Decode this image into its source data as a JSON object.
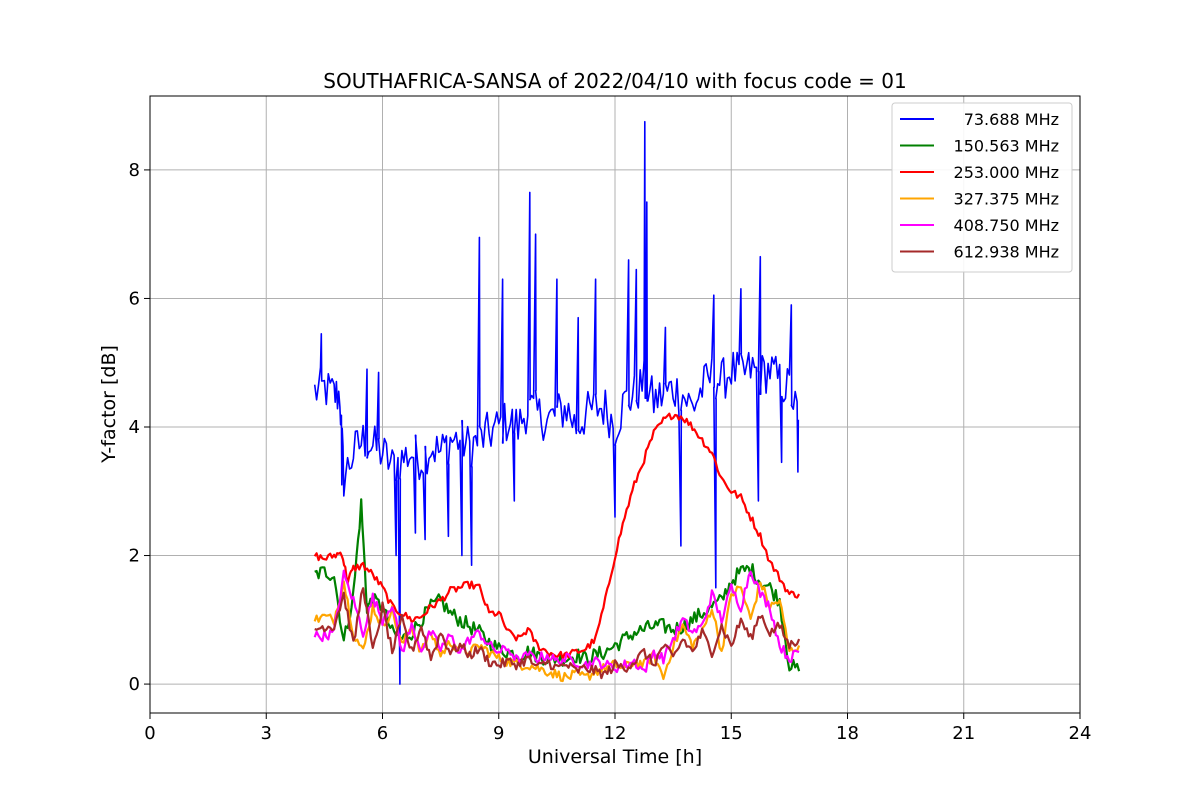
{
  "chart_data": {
    "type": "line",
    "title": "SOUTHAFRICA-SANSA of 2022/04/10 with focus code = 01",
    "xlabel": "Universal Time [h]",
    "ylabel": "Y-factor [dB]",
    "xlim": [
      0,
      24
    ],
    "ylim": [
      -0.45,
      9.15
    ],
    "xticks": [
      0,
      3,
      6,
      9,
      12,
      15,
      18,
      21,
      24
    ],
    "xtick_labels": [
      "0",
      "3",
      "6",
      "9",
      "12",
      "15",
      "18",
      "21",
      "24"
    ],
    "yticks": [
      0,
      2,
      4,
      6,
      8
    ],
    "ytick_labels": [
      "0",
      "2",
      "4",
      "6",
      "8"
    ],
    "grid": true,
    "legend_position": "top-right",
    "series": [
      {
        "name": "73.688 MHz",
        "color": "#0000ff",
        "x": [
          4.25,
          4.5,
          4.75,
          4.9,
          5.0,
          5.25,
          5.5,
          5.75,
          6.0,
          6.25,
          6.5,
          6.75,
          7.0,
          7.25,
          7.5,
          7.75,
          8.0,
          8.25,
          8.5,
          8.75,
          9.0,
          9.25,
          9.5,
          9.75,
          10.0,
          10.25,
          10.5,
          10.75,
          11.0,
          11.25,
          11.5,
          11.75,
          12.0,
          12.25,
          12.5,
          12.75,
          13.0,
          13.25,
          13.5,
          13.75,
          14.0,
          14.25,
          14.5,
          14.75,
          15.0,
          15.25,
          15.5,
          15.75,
          16.0,
          16.25,
          16.5,
          16.75
        ],
        "y": [
          4.55,
          4.6,
          4.5,
          4.5,
          3.2,
          3.6,
          3.8,
          3.7,
          3.6,
          3.4,
          3.5,
          3.6,
          3.5,
          3.7,
          3.6,
          3.8,
          3.8,
          3.7,
          3.8,
          3.9,
          4.0,
          4.1,
          4.0,
          4.3,
          4.2,
          4.1,
          4.2,
          4.3,
          4.0,
          4.2,
          4.3,
          4.3,
          4.0,
          4.4,
          4.5,
          4.7,
          4.4,
          4.5,
          4.6,
          4.5,
          4.3,
          4.6,
          4.8,
          4.7,
          4.9,
          4.8,
          4.9,
          4.8,
          4.9,
          4.7,
          4.6,
          4.1
        ],
        "spikes": [
          {
            "x": 4.42,
            "y": 5.45
          },
          {
            "x": 4.95,
            "y": 3.1
          },
          {
            "x": 5.6,
            "y": 4.9
          },
          {
            "x": 5.9,
            "y": 4.85
          },
          {
            "x": 6.35,
            "y": 2.0
          },
          {
            "x": 6.45,
            "y": 0.0
          },
          {
            "x": 6.85,
            "y": 2.35
          },
          {
            "x": 7.1,
            "y": 2.25
          },
          {
            "x": 7.7,
            "y": 2.3
          },
          {
            "x": 8.05,
            "y": 2.0
          },
          {
            "x": 8.3,
            "y": 1.85
          },
          {
            "x": 8.5,
            "y": 6.95
          },
          {
            "x": 9.1,
            "y": 6.3
          },
          {
            "x": 9.4,
            "y": 2.85
          },
          {
            "x": 9.8,
            "y": 7.65
          },
          {
            "x": 9.95,
            "y": 7.0
          },
          {
            "x": 10.5,
            "y": 6.3
          },
          {
            "x": 11.05,
            "y": 5.7
          },
          {
            "x": 11.5,
            "y": 6.3
          },
          {
            "x": 12.0,
            "y": 2.6
          },
          {
            "x": 12.35,
            "y": 6.6
          },
          {
            "x": 12.55,
            "y": 6.45
          },
          {
            "x": 12.77,
            "y": 8.75
          },
          {
            "x": 12.82,
            "y": 7.5
          },
          {
            "x": 13.3,
            "y": 5.55
          },
          {
            "x": 13.7,
            "y": 2.15
          },
          {
            "x": 14.6,
            "y": 1.5
          },
          {
            "x": 14.55,
            "y": 6.05
          },
          {
            "x": 15.25,
            "y": 6.15
          },
          {
            "x": 15.75,
            "y": 6.65
          },
          {
            "x": 15.7,
            "y": 2.85
          },
          {
            "x": 16.3,
            "y": 3.45
          },
          {
            "x": 16.55,
            "y": 5.9
          },
          {
            "x": 16.72,
            "y": 3.3
          }
        ]
      },
      {
        "name": "150.563 MHz",
        "color": "#008000",
        "x": [
          4.25,
          4.5,
          4.75,
          5.0,
          5.25,
          5.45,
          5.6,
          5.75,
          6.0,
          6.25,
          6.5,
          6.75,
          7.0,
          7.25,
          7.5,
          7.75,
          8.0,
          8.25,
          8.5,
          8.75,
          9.0,
          9.25,
          9.5,
          9.75,
          10.0,
          10.25,
          10.5,
          10.75,
          11.0,
          11.25,
          11.5,
          11.75,
          12.0,
          12.25,
          12.5,
          12.75,
          13.0,
          13.25,
          13.5,
          13.75,
          14.0,
          14.25,
          14.5,
          14.75,
          15.0,
          15.25,
          15.5,
          15.75,
          16.0,
          16.25,
          16.5,
          16.75
        ],
        "y": [
          1.7,
          1.75,
          1.7,
          0.65,
          1.4,
          2.8,
          1.2,
          1.3,
          1.2,
          0.8,
          0.7,
          0.8,
          1.0,
          1.2,
          1.3,
          1.1,
          1.0,
          0.9,
          0.8,
          0.65,
          0.55,
          0.5,
          0.45,
          0.5,
          0.45,
          0.4,
          0.4,
          0.4,
          0.45,
          0.4,
          0.45,
          0.5,
          0.6,
          0.7,
          0.8,
          0.85,
          0.9,
          0.9,
          0.85,
          0.9,
          1.0,
          1.1,
          1.2,
          1.3,
          1.6,
          1.75,
          1.8,
          1.6,
          1.5,
          1.3,
          0.3,
          0.2
        ]
      },
      {
        "name": "253.000 MHz",
        "color": "#ff0000",
        "x": [
          4.25,
          4.5,
          4.75,
          4.95,
          5.1,
          5.25,
          5.5,
          5.75,
          6.0,
          6.25,
          6.5,
          6.75,
          7.0,
          7.25,
          7.5,
          7.75,
          8.0,
          8.25,
          8.5,
          8.75,
          9.0,
          9.25,
          9.5,
          9.75,
          10.0,
          10.25,
          10.5,
          10.75,
          11.0,
          11.25,
          11.5,
          11.75,
          12.0,
          12.25,
          12.5,
          12.75,
          13.0,
          13.25,
          13.5,
          13.75,
          14.0,
          14.25,
          14.5,
          14.75,
          15.0,
          15.25,
          15.5,
          15.75,
          16.0,
          16.25,
          16.5,
          16.75
        ],
        "y": [
          2.0,
          1.95,
          2.0,
          2.05,
          1.6,
          1.8,
          1.85,
          1.7,
          1.5,
          1.2,
          1.1,
          1.0,
          1.05,
          1.2,
          1.3,
          1.45,
          1.5,
          1.55,
          1.5,
          1.1,
          1.1,
          0.8,
          0.7,
          0.85,
          0.6,
          0.5,
          0.45,
          0.45,
          0.5,
          0.55,
          0.7,
          1.3,
          2.0,
          2.6,
          3.1,
          3.5,
          3.9,
          4.1,
          4.2,
          4.15,
          4.0,
          3.8,
          3.6,
          3.2,
          3.0,
          2.9,
          2.6,
          2.3,
          1.9,
          1.65,
          1.4,
          1.4
        ]
      },
      {
        "name": "327.375 MHz",
        "color": "#ffa500",
        "x": [
          4.25,
          4.5,
          4.75,
          5.0,
          5.25,
          5.5,
          5.75,
          6.0,
          6.25,
          6.5,
          6.75,
          7.0,
          7.25,
          7.5,
          7.75,
          8.0,
          8.25,
          8.5,
          8.75,
          9.0,
          9.25,
          9.5,
          9.75,
          10.0,
          10.25,
          10.5,
          10.75,
          11.0,
          11.25,
          11.5,
          11.75,
          12.0,
          12.25,
          12.5,
          12.75,
          13.0,
          13.25,
          13.5,
          13.75,
          14.0,
          14.25,
          14.5,
          14.75,
          15.0,
          15.25,
          15.5,
          15.75,
          16.0,
          16.25,
          16.5,
          16.75
        ],
        "y": [
          1.0,
          1.05,
          1.0,
          1.6,
          0.8,
          0.5,
          1.2,
          0.9,
          1.15,
          0.6,
          0.9,
          0.5,
          0.8,
          0.45,
          0.65,
          0.55,
          0.5,
          0.6,
          0.5,
          0.4,
          0.35,
          0.3,
          0.3,
          0.25,
          0.2,
          0.15,
          0.1,
          0.15,
          0.1,
          0.2,
          0.25,
          0.3,
          0.25,
          0.35,
          0.3,
          0.45,
          0.1,
          0.6,
          0.9,
          0.6,
          0.8,
          1.2,
          0.5,
          1.4,
          1.5,
          1.0,
          1.6,
          1.2,
          1.3,
          0.5,
          0.6
        ]
      },
      {
        "name": "408.750 MHz",
        "color": "#ff00ff",
        "x": [
          4.25,
          4.5,
          4.75,
          5.0,
          5.25,
          5.5,
          5.75,
          6.0,
          6.25,
          6.5,
          6.75,
          7.0,
          7.25,
          7.5,
          7.75,
          8.0,
          8.25,
          8.5,
          8.75,
          9.0,
          9.25,
          9.5,
          9.75,
          10.0,
          10.25,
          10.5,
          10.75,
          11.0,
          11.25,
          11.5,
          11.75,
          12.0,
          12.25,
          12.5,
          12.75,
          13.0,
          13.25,
          13.5,
          13.75,
          14.0,
          14.25,
          14.5,
          14.75,
          15.0,
          15.25,
          15.5,
          15.75,
          16.0,
          16.25,
          16.5,
          16.75
        ],
        "y": [
          0.75,
          0.75,
          0.8,
          1.7,
          1.3,
          0.8,
          1.35,
          1.0,
          1.25,
          0.5,
          0.9,
          0.55,
          0.8,
          0.55,
          0.75,
          0.5,
          0.7,
          0.8,
          0.6,
          0.5,
          0.55,
          0.35,
          0.45,
          0.4,
          0.45,
          0.35,
          0.4,
          0.35,
          0.3,
          0.35,
          0.3,
          0.25,
          0.3,
          0.35,
          0.2,
          0.5,
          0.4,
          0.7,
          1.0,
          0.8,
          0.9,
          1.4,
          1.0,
          1.5,
          1.2,
          1.8,
          1.4,
          1.2,
          0.6,
          0.4,
          0.5
        ]
      },
      {
        "name": "612.938 MHz",
        "color": "#a52a2a",
        "x": [
          4.25,
          4.5,
          4.75,
          5.0,
          5.25,
          5.5,
          5.75,
          6.0,
          6.25,
          6.5,
          6.75,
          7.0,
          7.25,
          7.5,
          7.75,
          8.0,
          8.25,
          8.5,
          8.75,
          9.0,
          9.25,
          9.5,
          9.75,
          10.0,
          10.25,
          10.5,
          10.75,
          11.0,
          11.25,
          11.5,
          11.75,
          12.0,
          12.25,
          12.5,
          12.75,
          13.0,
          13.25,
          13.5,
          13.75,
          14.0,
          14.25,
          14.5,
          14.75,
          15.0,
          15.25,
          15.5,
          15.75,
          16.0,
          16.25,
          16.5,
          16.75
        ],
        "y": [
          0.85,
          0.9,
          0.9,
          1.4,
          0.6,
          1.55,
          0.5,
          1.2,
          0.5,
          1.0,
          0.5,
          0.9,
          0.4,
          0.8,
          0.5,
          0.6,
          0.45,
          0.55,
          0.35,
          0.3,
          0.35,
          0.3,
          0.4,
          0.25,
          0.35,
          0.25,
          0.3,
          0.2,
          0.25,
          0.2,
          0.15,
          0.3,
          0.25,
          0.35,
          0.5,
          0.3,
          0.6,
          0.4,
          0.7,
          0.5,
          0.8,
          0.5,
          0.9,
          0.6,
          1.0,
          0.7,
          1.1,
          0.8,
          0.9,
          0.6,
          0.7
        ]
      }
    ]
  }
}
